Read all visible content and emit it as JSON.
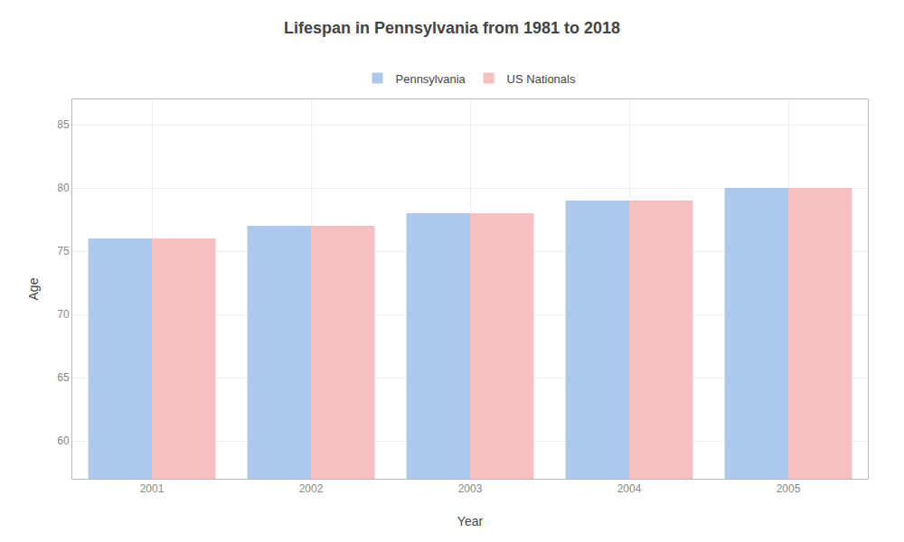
{
  "chart_data": {
    "type": "bar",
    "title": "Lifespan in Pennsylvania from 1981 to 2018",
    "x_label": "Year",
    "y_label": "Age",
    "categories": [
      "2001",
      "2002",
      "2003",
      "2004",
      "2005"
    ],
    "series": [
      {
        "name": "Pennsylvania",
        "color": "#adc8ed",
        "values": [
          76,
          77,
          78,
          79,
          80
        ]
      },
      {
        "name": "US Nationals",
        "color": "#f5c0c0",
        "values": [
          76,
          77,
          78,
          79,
          80
        ]
      }
    ],
    "ylim": [
      57,
      87
    ],
    "yticks": [
      60,
      65,
      70,
      75,
      80,
      85
    ],
    "grid": true,
    "legend": "upper center"
  }
}
